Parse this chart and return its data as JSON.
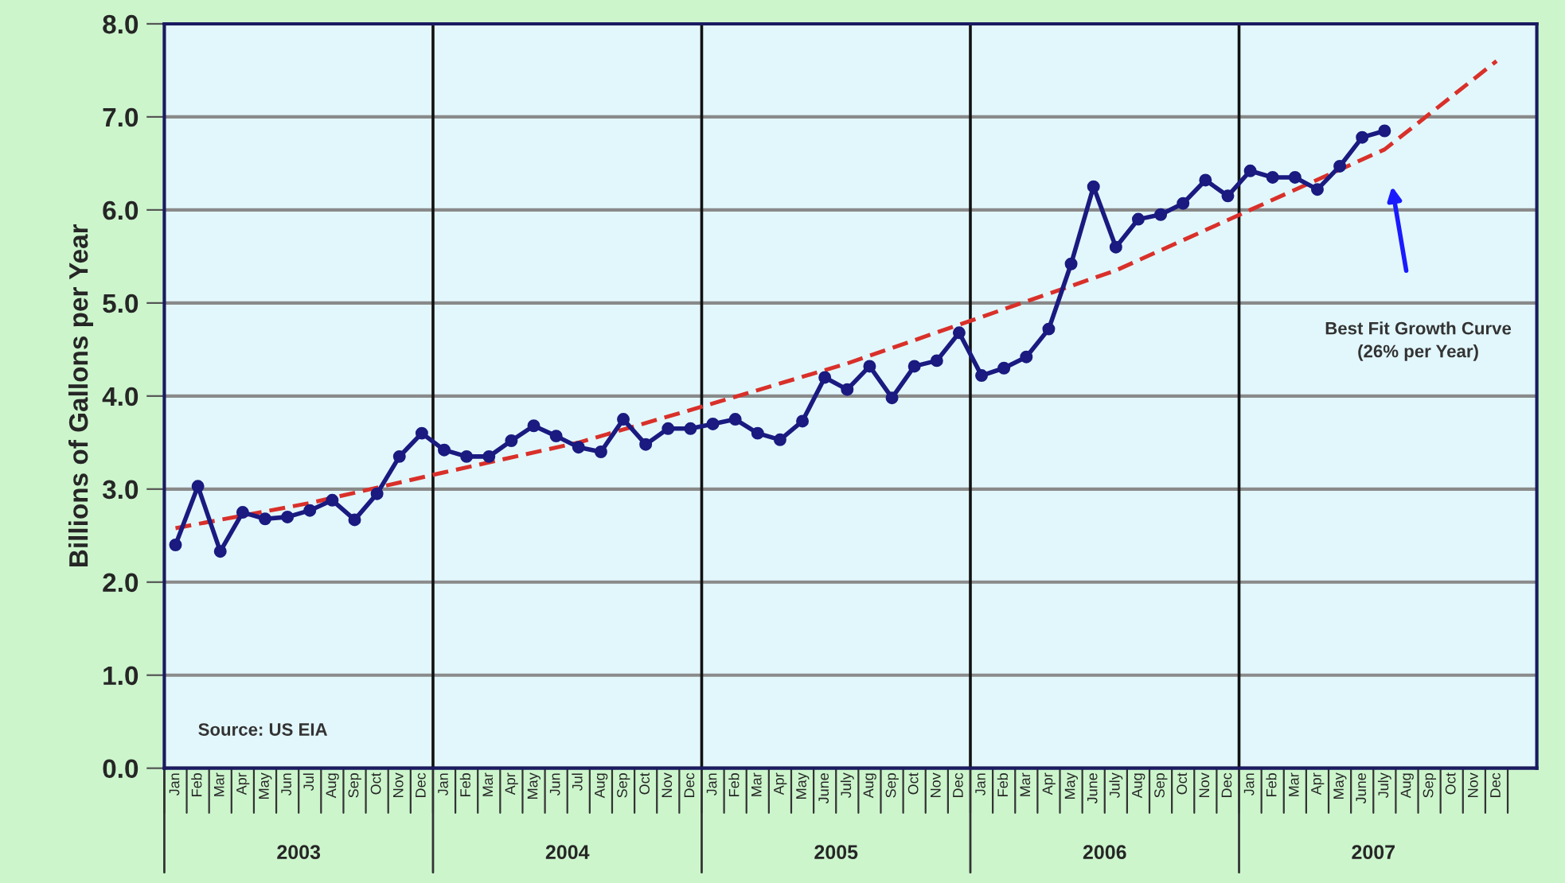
{
  "chart_data": {
    "type": "line",
    "ylabel": "Billions of Gallons per Year",
    "categories": [
      "Jan",
      "Feb",
      "Mar",
      "Apr",
      "May",
      "Jun",
      "Jul",
      "Aug",
      "Sep",
      "Oct",
      "Nov",
      "Dec",
      "Jan",
      "Feb",
      "Mar",
      "Apr",
      "May",
      "Jun",
      "Jul",
      "Aug",
      "Sep",
      "Oct",
      "Nov",
      "Dec",
      "Jan",
      "Feb",
      "Mar",
      "Apr",
      "May",
      "June",
      "July",
      "Aug",
      "Sep",
      "Oct",
      "Nov",
      "Dec",
      "Jan",
      "Feb",
      "Mar",
      "Apr",
      "May",
      "June",
      "July",
      "Aug",
      "Sep",
      "Oct",
      "Nov",
      "Dec",
      "Jan",
      "Feb",
      "Mar",
      "Apr",
      "May",
      "June",
      "July",
      "Aug",
      "Sep",
      "Oct",
      "Nov",
      "Dec"
    ],
    "series": [
      {
        "color": "#1a1a80",
        "marker": "circle",
        "line_style": "solid",
        "values": [
          2.4,
          3.03,
          2.33,
          2.75,
          2.68,
          2.7,
          2.77,
          2.88,
          2.67,
          2.95,
          3.35,
          3.6,
          3.42,
          3.35,
          3.35,
          3.52,
          3.68,
          3.57,
          3.45,
          3.4,
          3.75,
          3.48,
          3.65,
          3.65,
          3.7,
          3.75,
          3.6,
          3.53,
          3.73,
          4.2,
          4.07,
          4.32,
          3.98,
          4.32,
          4.38,
          4.68,
          4.22,
          4.3,
          4.42,
          4.72,
          5.42,
          6.25,
          5.6,
          5.9,
          5.95,
          6.07,
          6.32,
          6.15,
          6.42,
          6.35,
          6.35,
          6.22,
          6.47,
          6.78,
          6.85,
          null,
          null,
          null,
          null,
          null
        ]
      },
      {
        "color": "#d9302a",
        "marker": "none",
        "line_style": "dashed",
        "values": [
          2.58,
          null,
          null,
          null,
          null,
          null,
          2.85,
          null,
          null,
          null,
          null,
          null,
          3.18,
          null,
          null,
          null,
          null,
          null,
          3.5,
          null,
          null,
          null,
          null,
          null,
          3.92,
          null,
          null,
          null,
          null,
          null,
          4.35,
          null,
          null,
          null,
          null,
          null,
          4.85,
          null,
          null,
          null,
          null,
          null,
          5.35,
          null,
          null,
          null,
          null,
          null,
          6.0,
          null,
          null,
          null,
          null,
          null,
          6.65,
          null,
          null,
          null,
          null,
          7.6
        ]
      }
    ],
    "ylim": [
      0,
      8
    ],
    "yticks": [
      {
        "value": 0,
        "label": "0.0"
      },
      {
        "value": 1,
        "label": "1.0"
      },
      {
        "value": 2,
        "label": "2.0"
      },
      {
        "value": 3,
        "label": "3.0"
      },
      {
        "value": 4,
        "label": "4.0"
      },
      {
        "value": 5,
        "label": "5.0"
      },
      {
        "value": 6,
        "label": "6.0"
      },
      {
        "value": 7,
        "label": "7.0"
      },
      {
        "value": 8,
        "label": "8.0"
      }
    ],
    "grid": "y",
    "legend": false,
    "annotations": [
      "2003",
      "2004",
      "2005",
      "2006",
      "2007",
      "Source: US EIA",
      "Best Fit Growth Curve\n(26% per Year)"
    ]
  }
}
